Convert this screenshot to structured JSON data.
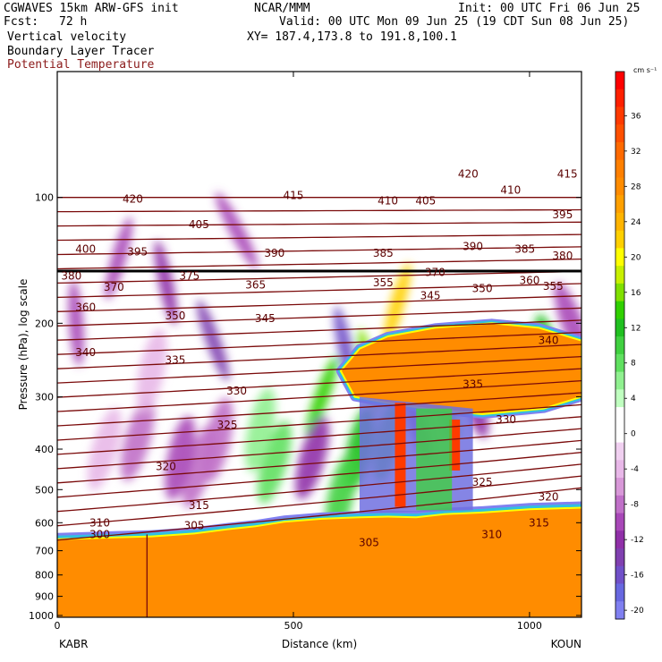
{
  "header": {
    "model": "CGWAVES 15km ARW-GFS init",
    "org": "NCAR/MMM",
    "init": "Init: 00 UTC Fri 06 Jun 25",
    "fcst_label": "Fcst:",
    "fcst_value": "72 h",
    "valid": "Valid: 00 UTC Mon 09 Jun 25 (19 CDT Sun 08 Jun 25)",
    "field1": "Vertical velocity",
    "xy": "XY= 187.4,173.8 to 191.8,100.1",
    "field2": "Boundary Layer Tracer",
    "field3": "Potential Temperature"
  },
  "colors": {
    "theta_contour": "#7a0a0a",
    "field3_label": "#8b1a1a"
  },
  "chart_data": {
    "type": "heatmap",
    "xlabel": "Distance (km)",
    "ylabel": "Pressure (hPa), log scale",
    "y_scale": "log",
    "x_range": [
      0,
      1110
    ],
    "y_range": [
      1010,
      50
    ],
    "x_ticks": [
      {
        "value": 0,
        "label": "0"
      },
      {
        "value": 500,
        "label": "500"
      },
      {
        "value": 1000,
        "label": "1000"
      }
    ],
    "y_ticks": [
      {
        "value": 100,
        "label": "100"
      },
      {
        "value": 200,
        "label": "200"
      },
      {
        "value": 300,
        "label": "300"
      },
      {
        "value": 400,
        "label": "400"
      },
      {
        "value": 500,
        "label": "500"
      },
      {
        "value": 600,
        "label": "600"
      },
      {
        "value": 700,
        "label": "700"
      },
      {
        "value": 800,
        "label": "800"
      },
      {
        "value": 900,
        "label": "900"
      },
      {
        "value": 1000,
        "label": "1000"
      }
    ],
    "endpoints": {
      "left": "KABR",
      "right": "KOUN"
    },
    "colorbar": {
      "units": "cm s⁻¹",
      "ticks": [
        "36",
        "32",
        "28",
        "24",
        "20",
        "16",
        "12",
        "8",
        "4",
        "0",
        "-4",
        "-8",
        "-12",
        "-16",
        "-20"
      ],
      "bins": [
        {
          "value": 40,
          "color": "#ff0000"
        },
        {
          "value": 38,
          "color": "#ff2000"
        },
        {
          "value": 36,
          "color": "#ff3a00"
        },
        {
          "value": 34,
          "color": "#ff5000"
        },
        {
          "value": 32,
          "color": "#ff6a00"
        },
        {
          "value": 30,
          "color": "#ff8000"
        },
        {
          "value": 28,
          "color": "#ff8c00"
        },
        {
          "value": 26,
          "color": "#ffa000"
        },
        {
          "value": 24,
          "color": "#ffb400"
        },
        {
          "value": 22,
          "color": "#ffd000"
        },
        {
          "value": 20,
          "color": "#ffff00"
        },
        {
          "value": 18,
          "color": "#c8f000"
        },
        {
          "value": 16,
          "color": "#80e000"
        },
        {
          "value": 14,
          "color": "#30d000"
        },
        {
          "value": 12,
          "color": "#20c020"
        },
        {
          "value": 10,
          "color": "#40d040"
        },
        {
          "value": 8,
          "color": "#60e060"
        },
        {
          "value": 6,
          "color": "#90f090"
        },
        {
          "value": 4,
          "color": "#c0ffc0"
        },
        {
          "value": 2,
          "color": "#ffffff"
        },
        {
          "value": 0,
          "color": "#ffffff"
        },
        {
          "value": -2,
          "color": "#f0d0f0"
        },
        {
          "value": -4,
          "color": "#e8b8e8"
        },
        {
          "value": -6,
          "color": "#d898d8"
        },
        {
          "value": -8,
          "color": "#c070c8"
        },
        {
          "value": -10,
          "color": "#a848b8"
        },
        {
          "value": -12,
          "color": "#9030a8"
        },
        {
          "value": -14,
          "color": "#8040b0"
        },
        {
          "value": -16,
          "color": "#7050c8"
        },
        {
          "value": -18,
          "color": "#6868e0"
        },
        {
          "value": -20,
          "color": "#8080f0"
        }
      ]
    },
    "theta_contours": [
      {
        "level": 300,
        "label_pos": [
          90,
          640
        ]
      },
      {
        "level": 305,
        "label_pos": [
          290,
          610
        ]
      },
      {
        "level": 305,
        "label_pos": [
          660,
          670
        ]
      },
      {
        "level": 310,
        "label_pos": [
          90,
          600
        ]
      },
      {
        "level": 310,
        "label_pos": [
          920,
          640
        ]
      },
      {
        "level": 315,
        "label_pos": [
          300,
          545
        ]
      },
      {
        "level": 315,
        "label_pos": [
          1020,
          600
        ]
      },
      {
        "level": 320,
        "label_pos": [
          230,
          440
        ]
      },
      {
        "level": 320,
        "label_pos": [
          1040,
          520
        ]
      },
      {
        "level": 325,
        "label_pos": [
          360,
          350
        ]
      },
      {
        "level": 325,
        "label_pos": [
          900,
          480
        ]
      },
      {
        "level": 330,
        "label_pos": [
          380,
          290
        ]
      },
      {
        "level": 330,
        "label_pos": [
          950,
          340
        ]
      },
      {
        "level": 335,
        "label_pos": [
          250,
          245
        ]
      },
      {
        "level": 335,
        "label_pos": [
          880,
          280
        ]
      },
      {
        "level": 340,
        "label_pos": [
          60,
          235
        ]
      },
      {
        "level": 340,
        "label_pos": [
          1040,
          220
        ]
      },
      {
        "level": 345,
        "label_pos": [
          440,
          195
        ]
      },
      {
        "level": 345,
        "label_pos": [
          790,
          172
        ]
      },
      {
        "level": 350,
        "label_pos": [
          250,
          192
        ]
      },
      {
        "level": 350,
        "label_pos": [
          900,
          165
        ]
      },
      {
        "level": 355,
        "label_pos": [
          690,
          160
        ]
      },
      {
        "level": 355,
        "label_pos": [
          1050,
          163
        ]
      },
      {
        "level": 360,
        "label_pos": [
          60,
          183
        ]
      },
      {
        "level": 360,
        "label_pos": [
          1000,
          158
        ]
      },
      {
        "level": 365,
        "label_pos": [
          420,
          162
        ]
      },
      {
        "level": 370,
        "label_pos": [
          120,
          164
        ]
      },
      {
        "level": 370,
        "label_pos": [
          800,
          151
        ]
      },
      {
        "level": 375,
        "label_pos": [
          280,
          154
        ]
      },
      {
        "level": 380,
        "label_pos": [
          30,
          154
        ]
      },
      {
        "level": 380,
        "label_pos": [
          1070,
          138
        ]
      },
      {
        "level": 385,
        "label_pos": [
          690,
          136
        ]
      },
      {
        "level": 385,
        "label_pos": [
          990,
          133
        ]
      },
      {
        "level": 390,
        "label_pos": [
          460,
          136
        ]
      },
      {
        "level": 390,
        "label_pos": [
          880,
          131
        ]
      },
      {
        "level": 395,
        "label_pos": [
          170,
          135
        ]
      },
      {
        "level": 395,
        "label_pos": [
          1070,
          110
        ]
      },
      {
        "level": 400,
        "label_pos": [
          60,
          133
        ]
      },
      {
        "level": 405,
        "label_pos": [
          300,
          116
        ]
      },
      {
        "level": 405,
        "label_pos": [
          780,
          102
        ]
      },
      {
        "level": 410,
        "label_pos": [
          700,
          102
        ]
      },
      {
        "level": 410,
        "label_pos": [
          960,
          96
        ]
      },
      {
        "level": 415,
        "label_pos": [
          500,
          99
        ]
      },
      {
        "level": 415,
        "label_pos": [
          1080,
          88
        ]
      },
      {
        "level": 420,
        "label_pos": [
          160,
          101
        ]
      },
      {
        "level": 420,
        "label_pos": [
          870,
          88
        ]
      }
    ]
  }
}
